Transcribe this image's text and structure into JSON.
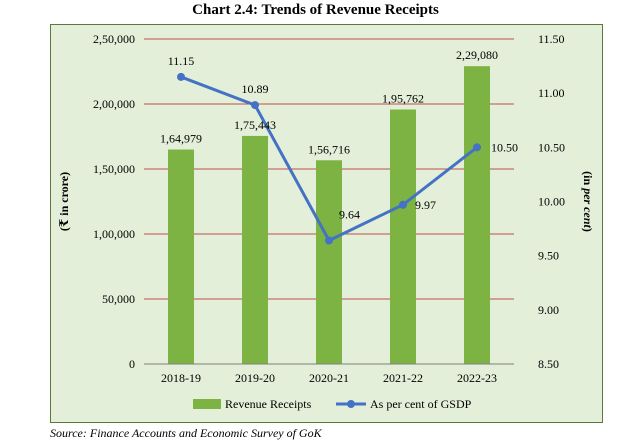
{
  "title": "Chart 2.4: Trends of Revenue Receipts",
  "source": "Source: Finance Accounts and Economic Survey of GoK",
  "colors": {
    "bar": "#7cb342",
    "line": "#4472c4",
    "grid": "#c0504d",
    "frame_bg": "#e4efd9"
  },
  "chart_data": {
    "type": "bar+line",
    "categories": [
      "2018-19",
      "2019-20",
      "2020-21",
      "2021-22",
      "2022-23"
    ],
    "series": [
      {
        "name": "Revenue Receipts",
        "type": "bar",
        "axis": "left",
        "values": [
          164979,
          175443,
          156716,
          195762,
          229080
        ],
        "labels": [
          "1,64,979",
          "1,75,443",
          "1,56,716",
          "1,95,762",
          "2,29,080"
        ]
      },
      {
        "name": "As per cent of GSDP",
        "type": "line",
        "axis": "right",
        "values": [
          11.15,
          10.89,
          9.64,
          9.97,
          10.5
        ],
        "labels": [
          "11.15",
          "10.89",
          "9.64",
          "9.97",
          "10.50"
        ]
      }
    ],
    "y_left": {
      "min": 0,
      "max": 250000,
      "ticks": [
        0,
        50000,
        100000,
        150000,
        200000,
        250000
      ],
      "tick_labels": [
        "0",
        "50,000",
        "1,00,000",
        "1,50,000",
        "2,00,000",
        "2,50,000"
      ]
    },
    "y_right": {
      "min": 8.5,
      "max": 11.5,
      "ticks": [
        8.5,
        9.0,
        9.5,
        10.0,
        10.5,
        11.0,
        11.5
      ],
      "tick_labels": [
        "8.50",
        "9.00",
        "9.50",
        "10.00",
        "10.50",
        "11.00",
        "11.50"
      ]
    },
    "ylabel_left": "(₹ in crore)",
    "ylabel_right_prefix": "(in ",
    "ylabel_right_italic": "per cent",
    "ylabel_right_suffix": ")",
    "grid": true,
    "legend_position": "bottom"
  }
}
